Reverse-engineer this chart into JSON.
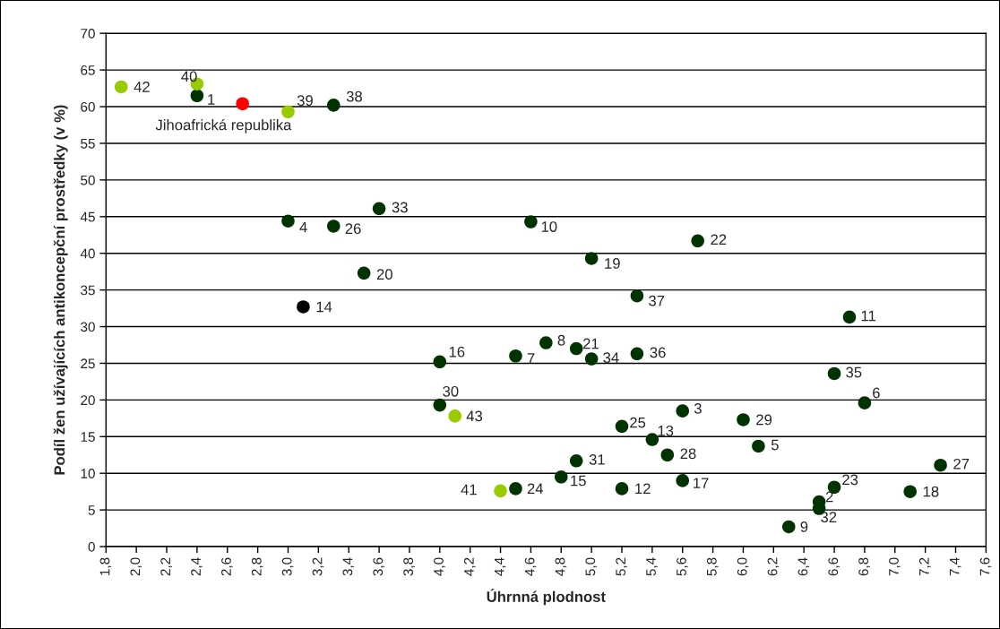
{
  "chart_data": {
    "type": "scatter",
    "xlabel": "Úhrnná plodnost",
    "ylabel": "Podíl žen užívajících antikoncepční prostředky (v %)",
    "series": [
      {
        "color": "#003300",
        "x": [
          2.4,
          3.3,
          3.6,
          3.0,
          3.3,
          3.5,
          4.6,
          5.7,
          5.0,
          5.3,
          6.7,
          4.0,
          4.5,
          4.7,
          4.9,
          5.0,
          5.3,
          6.6,
          6.8,
          4.0,
          5.6,
          6.0,
          5.2,
          5.4,
          6.1,
          5.5,
          4.9,
          7.3,
          4.8,
          4.5,
          5.6,
          6.6,
          5.2,
          7.1,
          6.5,
          6.5,
          6.3
        ],
        "values": [
          61.5,
          60.2,
          46.1,
          44.4,
          43.7,
          37.3,
          44.3,
          41.7,
          39.3,
          34.2,
          31.3,
          25.2,
          26.0,
          27.8,
          27.0,
          25.6,
          26.3,
          23.6,
          19.6,
          19.3,
          18.5,
          17.3,
          16.4,
          14.6,
          13.7,
          12.5,
          11.7,
          11.1,
          9.5,
          7.9,
          9.0,
          8.1,
          7.9,
          7.5,
          6.1,
          5.2,
          2.7
        ]
      },
      {
        "color": "#99cc00",
        "x": [
          1.9,
          2.4,
          3.0,
          4.1,
          4.4
        ],
        "values": [
          62.7,
          63.1,
          59.3,
          17.8,
          7.6
        ]
      },
      {
        "color": "#ff0000",
        "x": [
          2.7
        ],
        "values": [
          60.4
        ]
      },
      {
        "color": "#000000",
        "x": [
          3.1
        ],
        "values": [
          32.7
        ]
      }
    ],
    "annotations": [
      {
        "text": "1",
        "x": 2.4,
        "y": 61.5
      },
      {
        "text": "38",
        "x": 3.3,
        "y": 60.2
      },
      {
        "text": "33",
        "x": 3.6,
        "y": 46.1
      },
      {
        "text": "4",
        "x": 3.0,
        "y": 44.4
      },
      {
        "text": "26",
        "x": 3.3,
        "y": 43.7
      },
      {
        "text": "20",
        "x": 3.5,
        "y": 37.3
      },
      {
        "text": "10",
        "x": 4.6,
        "y": 44.3
      },
      {
        "text": "22",
        "x": 5.7,
        "y": 41.7
      },
      {
        "text": "19",
        "x": 5.0,
        "y": 39.3
      },
      {
        "text": "37",
        "x": 5.3,
        "y": 34.2
      },
      {
        "text": "11",
        "x": 6.7,
        "y": 31.3
      },
      {
        "text": "16",
        "x": 4.0,
        "y": 25.2
      },
      {
        "text": "7",
        "x": 4.5,
        "y": 26.0
      },
      {
        "text": "8",
        "x": 4.7,
        "y": 27.8
      },
      {
        "text": "21",
        "x": 4.9,
        "y": 27.0
      },
      {
        "text": "34",
        "x": 5.0,
        "y": 25.6
      },
      {
        "text": "36",
        "x": 5.3,
        "y": 26.3
      },
      {
        "text": "35",
        "x": 6.6,
        "y": 23.6
      },
      {
        "text": "6",
        "x": 6.8,
        "y": 19.6
      },
      {
        "text": "30",
        "x": 4.0,
        "y": 19.3
      },
      {
        "text": "3",
        "x": 5.6,
        "y": 18.5
      },
      {
        "text": "29",
        "x": 6.0,
        "y": 17.3
      },
      {
        "text": "25",
        "x": 5.2,
        "y": 16.4
      },
      {
        "text": "13",
        "x": 5.4,
        "y": 14.6
      },
      {
        "text": "5",
        "x": 6.1,
        "y": 13.7
      },
      {
        "text": "28",
        "x": 5.5,
        "y": 12.5
      },
      {
        "text": "31",
        "x": 4.9,
        "y": 11.7
      },
      {
        "text": "27",
        "x": 7.3,
        "y": 11.1
      },
      {
        "text": "15",
        "x": 4.8,
        "y": 9.5
      },
      {
        "text": "24",
        "x": 4.5,
        "y": 7.9
      },
      {
        "text": "17",
        "x": 5.6,
        "y": 9.0
      },
      {
        "text": "23",
        "x": 6.6,
        "y": 8.1
      },
      {
        "text": "12",
        "x": 5.2,
        "y": 7.9
      },
      {
        "text": "18",
        "x": 7.1,
        "y": 7.5
      },
      {
        "text": "2",
        "x": 6.5,
        "y": 6.1
      },
      {
        "text": "32",
        "x": 6.5,
        "y": 5.2
      },
      {
        "text": "9",
        "x": 6.3,
        "y": 2.7
      },
      {
        "text": "42",
        "x": 1.9,
        "y": 62.7
      },
      {
        "text": "40",
        "x": 2.4,
        "y": 63.1
      },
      {
        "text": "39",
        "x": 3.0,
        "y": 59.3
      },
      {
        "text": "43",
        "x": 4.1,
        "y": 17.8
      },
      {
        "text": "41",
        "x": 4.4,
        "y": 7.6
      },
      {
        "text": "Jihoafrická republika",
        "x": 2.7,
        "y": 60.4
      },
      {
        "text": "14",
        "x": 3.1,
        "y": 32.7
      }
    ],
    "xlim": [
      1.8,
      7.6
    ],
    "xticks": [
      {
        "value": 1.8,
        "label": "1,8"
      },
      {
        "value": 2.0,
        "label": "2,0"
      },
      {
        "value": 2.2,
        "label": "2,2"
      },
      {
        "value": 2.4,
        "label": "2,4"
      },
      {
        "value": 2.6,
        "label": "2,6"
      },
      {
        "value": 2.8,
        "label": "2,8"
      },
      {
        "value": 3.0,
        "label": "3,0"
      },
      {
        "value": 3.2,
        "label": "3,2"
      },
      {
        "value": 3.4,
        "label": "3,4"
      },
      {
        "value": 3.6,
        "label": "3,6"
      },
      {
        "value": 3.8,
        "label": "3,8"
      },
      {
        "value": 4.0,
        "label": "4,0"
      },
      {
        "value": 4.2,
        "label": "4,2"
      },
      {
        "value": 4.4,
        "label": "4,4"
      },
      {
        "value": 4.6,
        "label": "4,6"
      },
      {
        "value": 4.8,
        "label": "4,8"
      },
      {
        "value": 5.0,
        "label": "5,0"
      },
      {
        "value": 5.2,
        "label": "5,2"
      },
      {
        "value": 5.4,
        "label": "5,4"
      },
      {
        "value": 5.6,
        "label": "5,6"
      },
      {
        "value": 5.8,
        "label": "5,8"
      },
      {
        "value": 6.0,
        "label": "6,0"
      },
      {
        "value": 6.2,
        "label": "6,2"
      },
      {
        "value": 6.4,
        "label": "6,4"
      },
      {
        "value": 6.6,
        "label": "6,6"
      },
      {
        "value": 6.8,
        "label": "6,8"
      },
      {
        "value": 7.0,
        "label": "7,0"
      },
      {
        "value": 7.2,
        "label": "7,2"
      },
      {
        "value": 7.4,
        "label": "7,4"
      },
      {
        "value": 7.6,
        "label": "7,6"
      }
    ],
    "ylim": [
      0,
      70
    ],
    "yticks": [
      0,
      5,
      10,
      15,
      20,
      25,
      30,
      35,
      40,
      45,
      50,
      55,
      60,
      65,
      70
    ],
    "grid": "y",
    "legend": false,
    "marker": "circle"
  }
}
